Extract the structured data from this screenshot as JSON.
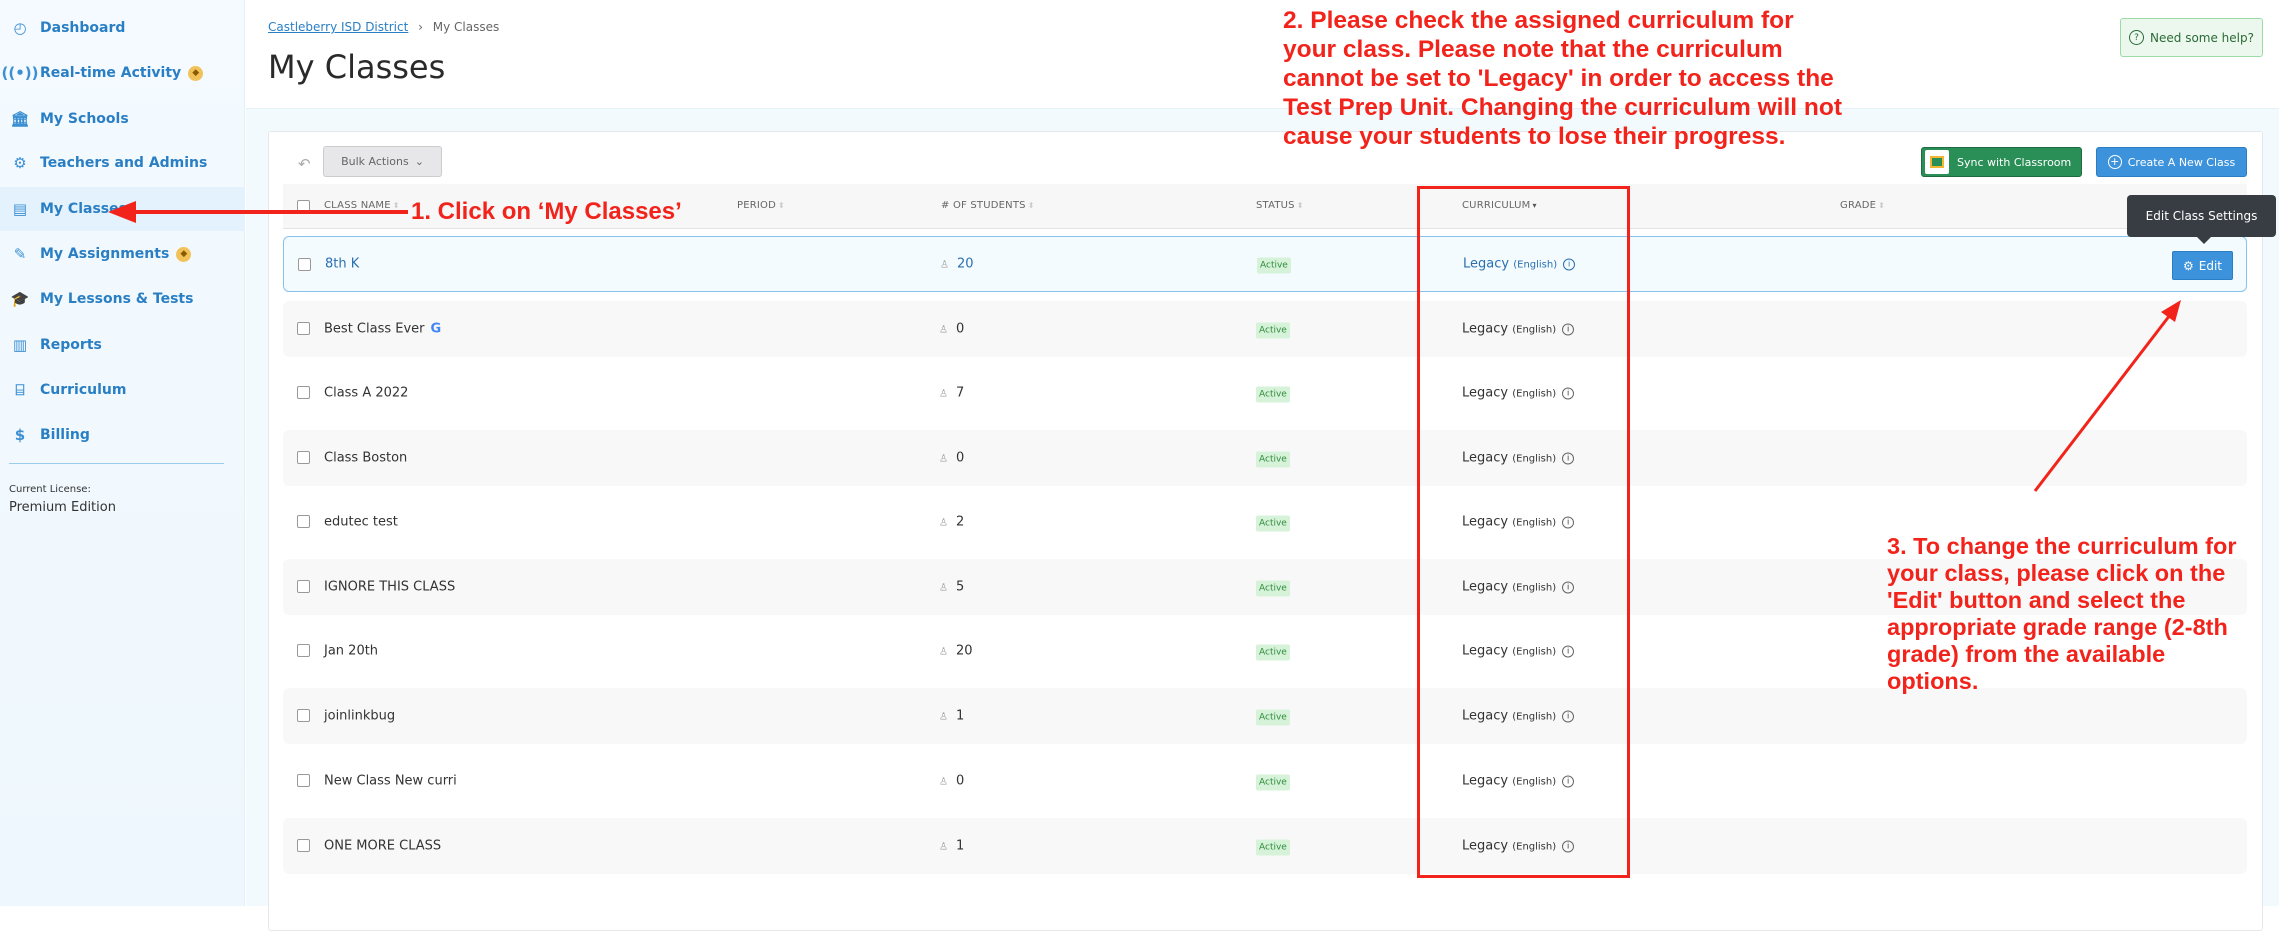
{
  "sidebar": {
    "items": [
      {
        "label": "Dashboard",
        "icon": "dashboard-icon",
        "glyph": "◴",
        "premium": false
      },
      {
        "label": "Real-time Activity",
        "icon": "broadcast-icon",
        "glyph": "((•))",
        "premium": true
      },
      {
        "label": "My Schools",
        "icon": "school-icon",
        "glyph": "🏛",
        "premium": false
      },
      {
        "label": "Teachers and Admins",
        "icon": "teacher-settings-icon",
        "glyph": "⚙",
        "premium": false
      },
      {
        "label": "My Classes",
        "icon": "classes-icon",
        "glyph": "▤",
        "premium": false,
        "active": true
      },
      {
        "label": "My Assignments",
        "icon": "assignments-icon",
        "glyph": "✎",
        "premium": true
      },
      {
        "label": "My Lessons & Tests",
        "icon": "lessons-icon",
        "glyph": "🎓",
        "premium": false
      },
      {
        "label": "Reports",
        "icon": "reports-icon",
        "glyph": "▥",
        "premium": false
      },
      {
        "label": "Curriculum",
        "icon": "curriculum-icon",
        "glyph": "⌸",
        "premium": false
      },
      {
        "label": "Billing",
        "icon": "billing-icon",
        "glyph": "$",
        "premium": false
      }
    ],
    "license_label": "Current License:",
    "license_value": "Premium Edition"
  },
  "header": {
    "breadcrumb_link": "Castleberry ISD District",
    "breadcrumb_sep": "›",
    "breadcrumb_current": "My Classes",
    "title": "My Classes",
    "help": "Need some help?"
  },
  "toolbar": {
    "bulk_actions": "Bulk Actions",
    "sync": "Sync with Classroom",
    "create": "Create A New Class"
  },
  "table": {
    "columns": [
      "CLASS NAME",
      "PERIOD",
      "# OF STUDENTS",
      "STATUS",
      "CURRICULUM",
      "GRADE"
    ],
    "rows": [
      {
        "name": "8th K",
        "students": "20",
        "status": "Active",
        "curriculum": "Legacy",
        "language": "(English)"
      },
      {
        "name": "Best Class Ever",
        "students": "0",
        "status": "Active",
        "curriculum": "Legacy",
        "language": "(English)",
        "google": true
      },
      {
        "name": "Class A 2022",
        "students": "7",
        "status": "Active",
        "curriculum": "Legacy",
        "language": "(English)"
      },
      {
        "name": "Class Boston",
        "students": "0",
        "status": "Active",
        "curriculum": "Legacy",
        "language": "(English)"
      },
      {
        "name": "edutec test",
        "students": "2",
        "status": "Active",
        "curriculum": "Legacy",
        "language": "(English)"
      },
      {
        "name": "IGNORE THIS CLASS",
        "students": "5",
        "status": "Active",
        "curriculum": "Legacy",
        "language": "(English)"
      },
      {
        "name": "Jan 20th",
        "students": "20",
        "status": "Active",
        "curriculum": "Legacy",
        "language": "(English)"
      },
      {
        "name": "joinlinkbug",
        "students": "1",
        "status": "Active",
        "curriculum": "Legacy",
        "language": "(English)"
      },
      {
        "name": "New Class New curri",
        "students": "0",
        "status": "Active",
        "curriculum": "Legacy",
        "language": "(English)"
      },
      {
        "name": "ONE MORE CLASS",
        "students": "1",
        "status": "Active",
        "curriculum": "Legacy",
        "language": "(English)"
      }
    ],
    "edit": "Edit",
    "tooltip": "Edit Class Settings"
  },
  "annotations": {
    "step1": "1. Click on ‘My Classes’",
    "step2": "2. Please check the assigned curriculum for your class. Please note that the curriculum cannot be set to 'Legacy' in order to access the Test Prep Unit. Changing the curriculum will not cause your students to lose their progress.",
    "step3": "3. To change the curriculum for your class, please click on the 'Edit' button and select the appropriate grade range (2-8th grade) from the available options.",
    "color": "#f2231b"
  }
}
